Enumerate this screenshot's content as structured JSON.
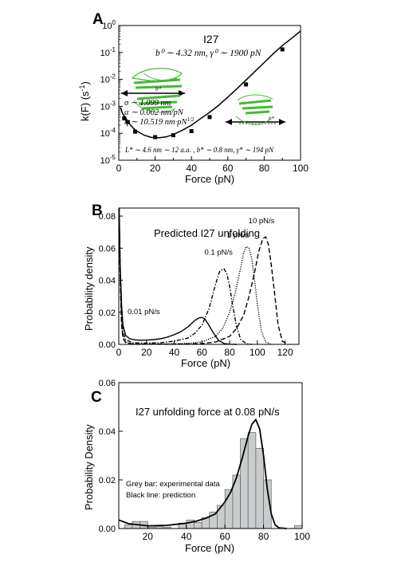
{
  "colors": {
    "line": "#000000",
    "bar_fill": "#c8cccc",
    "bar_stroke": "#606060",
    "protein": "#44bb33"
  },
  "chart_data": [
    {
      "type": "scatter",
      "panel_label": "A",
      "title": "I27",
      "xlabel": "Force (pN)",
      "ylabel": "k(F) (s",
      "ylabel_sup": "-1",
      "ylabel_close": ")",
      "xlim": [
        0,
        100
      ],
      "ylim": [
        1e-05,
        1
      ],
      "yscale": "log",
      "xticks": [
        0,
        10,
        20,
        30,
        40,
        50,
        60,
        70,
        80,
        90,
        100
      ],
      "xtick_labels": [
        "0",
        "20",
        "40",
        "60",
        "80",
        "100"
      ],
      "ytick_bases": [
        "10",
        "10",
        "10",
        "10",
        "10",
        "10"
      ],
      "ytick_exps": [
        "-5",
        "-4",
        "-3",
        "-2",
        "-1",
        "0"
      ],
      "points": [
        {
          "x": 3,
          "y": 0.00036
        },
        {
          "x": 5,
          "y": 0.00026
        },
        {
          "x": 9,
          "y": 0.000115
        },
        {
          "x": 20,
          "y": 7.2e-05
        },
        {
          "x": 30,
          "y": 8.5e-05
        },
        {
          "x": 40,
          "y": 0.00012
        },
        {
          "x": 50,
          "y": 0.0004
        },
        {
          "x": 70,
          "y": 0.0065
        },
        {
          "x": 90,
          "y": 0.13
        }
      ],
      "fit_line": {
        "x": [
          1,
          2,
          4,
          6,
          8,
          10,
          14,
          18,
          22,
          26,
          30,
          35,
          40,
          45,
          50,
          55,
          60,
          65,
          70,
          75,
          80,
          85,
          90,
          95,
          100
        ],
        "y": [
          0.0009,
          0.00055,
          0.00035,
          0.00022,
          0.000155,
          0.00012,
          8.5e-05,
          7e-05,
          6.8e-05,
          7.3e-05,
          9e-05,
          0.00013,
          0.0002,
          0.00035,
          0.0006,
          0.0011,
          0.0022,
          0.0045,
          0.0095,
          0.02,
          0.042,
          0.09,
          0.18,
          0.33,
          0.62
        ]
      },
      "annotations": {
        "params_top": "b⁰ ∼ 4.32 nm, γ⁰ ∼ 1900 pN",
        "sigma": "σ ∼ 1.099 nm",
        "alpha": "α ∼ 0.002 nm/pN",
        "eta": "η ∼ 10.519 nm·pN",
        "eta_sup": "1/2",
        "params_bottom": "L* ∼ 4.6 nm ∼ 12 a.a. , b* ∼ 0.8 nm, γ* ∼ 194 pN",
        "b0_small": "b⁰",
        "bstar_small": "b*"
      }
    },
    {
      "type": "line",
      "panel_label": "B",
      "title": "Predicted I27 unfolding",
      "xlabel": "Force (pN)",
      "ylabel": "Probability density",
      "xlim": [
        0,
        130
      ],
      "ylim": [
        0,
        0.085
      ],
      "xtick_labels": [
        "0",
        "20",
        "40",
        "60",
        "80",
        "100",
        "120"
      ],
      "xticks": [
        0,
        20,
        40,
        60,
        80,
        100,
        120
      ],
      "ytick_labels": [
        "0.00",
        "0.02",
        "0.04",
        "0.06",
        "0.08"
      ],
      "yticks": [
        0,
        0.02,
        0.04,
        0.06,
        0.08
      ],
      "series": [
        {
          "name": "0.01 pN/s",
          "style": "solid",
          "label_at": [
            18,
            0.019
          ],
          "x": [
            0.3,
            1,
            2,
            3,
            5,
            8,
            12,
            16,
            20,
            25,
            30,
            35,
            40,
            45,
            50,
            55,
            58,
            60,
            62,
            65,
            68,
            72,
            76,
            80,
            85
          ],
          "y": [
            0.085,
            0.05,
            0.025,
            0.012,
            0.0055,
            0.0035,
            0.0028,
            0.0026,
            0.0027,
            0.003,
            0.0035,
            0.0045,
            0.006,
            0.008,
            0.011,
            0.015,
            0.0165,
            0.0168,
            0.016,
            0.012,
            0.0075,
            0.0025,
            0.0005,
            0.0001,
            0
          ]
        },
        {
          "name": "0.1 pN/s",
          "style": "dashdot",
          "label_at": [
            72,
            0.056
          ],
          "x": [
            0.3,
            1,
            2,
            3,
            5,
            10,
            20,
            30,
            40,
            50,
            55,
            60,
            65,
            70,
            73,
            76,
            78,
            80,
            82,
            85,
            88,
            92,
            96
          ],
          "y": [
            0.085,
            0.05,
            0.02,
            0.008,
            0.003,
            0.001,
            0.0008,
            0.001,
            0.002,
            0.004,
            0.007,
            0.012,
            0.022,
            0.038,
            0.046,
            0.047,
            0.044,
            0.036,
            0.025,
            0.011,
            0.003,
            0.0005,
            0
          ]
        },
        {
          "name": "1 pN/s",
          "style": "dotted",
          "label_at": [
            86,
            0.0665
          ],
          "x": [
            0.3,
            1,
            2,
            3,
            5,
            10,
            30,
            50,
            60,
            70,
            75,
            80,
            84,
            88,
            90,
            92,
            94,
            96,
            98,
            100,
            103,
            106,
            110
          ],
          "y": [
            0.08,
            0.045,
            0.015,
            0.005,
            0.0015,
            0.0003,
            0.0002,
            0.0006,
            0.0015,
            0.005,
            0.01,
            0.02,
            0.032,
            0.048,
            0.057,
            0.061,
            0.06,
            0.053,
            0.04,
            0.025,
            0.008,
            0.0015,
            0
          ]
        },
        {
          "name": "10 pN/s",
          "style": "dashed",
          "label_at": [
            103,
            0.0755
          ],
          "x": [
            0.3,
            1,
            2,
            3,
            5,
            10,
            40,
            60,
            70,
            80,
            85,
            90,
            94,
            98,
            101,
            104,
            106,
            108,
            110,
            112,
            115,
            118,
            122
          ],
          "y": [
            0.075,
            0.04,
            0.012,
            0.004,
            0.001,
            0.0002,
            0.0001,
            0.0005,
            0.0015,
            0.005,
            0.01,
            0.018,
            0.03,
            0.045,
            0.058,
            0.066,
            0.067,
            0.062,
            0.05,
            0.035,
            0.012,
            0.002,
            0
          ]
        }
      ]
    },
    {
      "type": "bar",
      "panel_label": "C",
      "title": "I27 unfolding force at 0.08 pN/s",
      "xlabel": "Force (pN)",
      "ylabel": "Probability Density",
      "xlim": [
        5,
        100
      ],
      "ylim": [
        0,
        0.06
      ],
      "xtick_labels": [
        "20",
        "40",
        "60",
        "80",
        "100"
      ],
      "xticks": [
        20,
        40,
        60,
        80,
        100
      ],
      "ytick_labels": [
        "0.00",
        "0.02",
        "0.04",
        "0.06"
      ],
      "yticks": [
        0,
        0.02,
        0.04,
        0.06
      ],
      "bin_width": 4,
      "bars": {
        "x_start": [
          8,
          12,
          16,
          20,
          24,
          28,
          32,
          36,
          40,
          44,
          48,
          52,
          56,
          60,
          64,
          68,
          72,
          76,
          80,
          84,
          88,
          92,
          96
        ],
        "values": [
          0.0015,
          0.0029,
          0.0029,
          0.0006,
          0.0008,
          0.0006,
          0,
          0.0022,
          0.0035,
          0.0025,
          0.0045,
          0.0068,
          0.0095,
          0.016,
          0.022,
          0.037,
          0.0395,
          0.033,
          0.02,
          0,
          0,
          0,
          0.0012
        ]
      },
      "line": {
        "x": [
          5,
          10,
          20,
          30,
          40,
          45,
          50,
          55,
          60,
          63,
          66,
          69,
          72,
          74,
          76,
          78,
          80,
          82,
          84,
          86,
          88,
          92
        ],
        "y": [
          0.0035,
          0.002,
          0.0011,
          0.0013,
          0.0022,
          0.003,
          0.0042,
          0.006,
          0.011,
          0.015,
          0.021,
          0.029,
          0.038,
          0.043,
          0.0448,
          0.041,
          0.03,
          0.016,
          0.006,
          0.0015,
          0.0003,
          0
        ],
        "name": "Black line: prediction"
      },
      "legend_text": [
        "Grey bar: experimental data",
        "Black line: prediction"
      ]
    }
  ]
}
